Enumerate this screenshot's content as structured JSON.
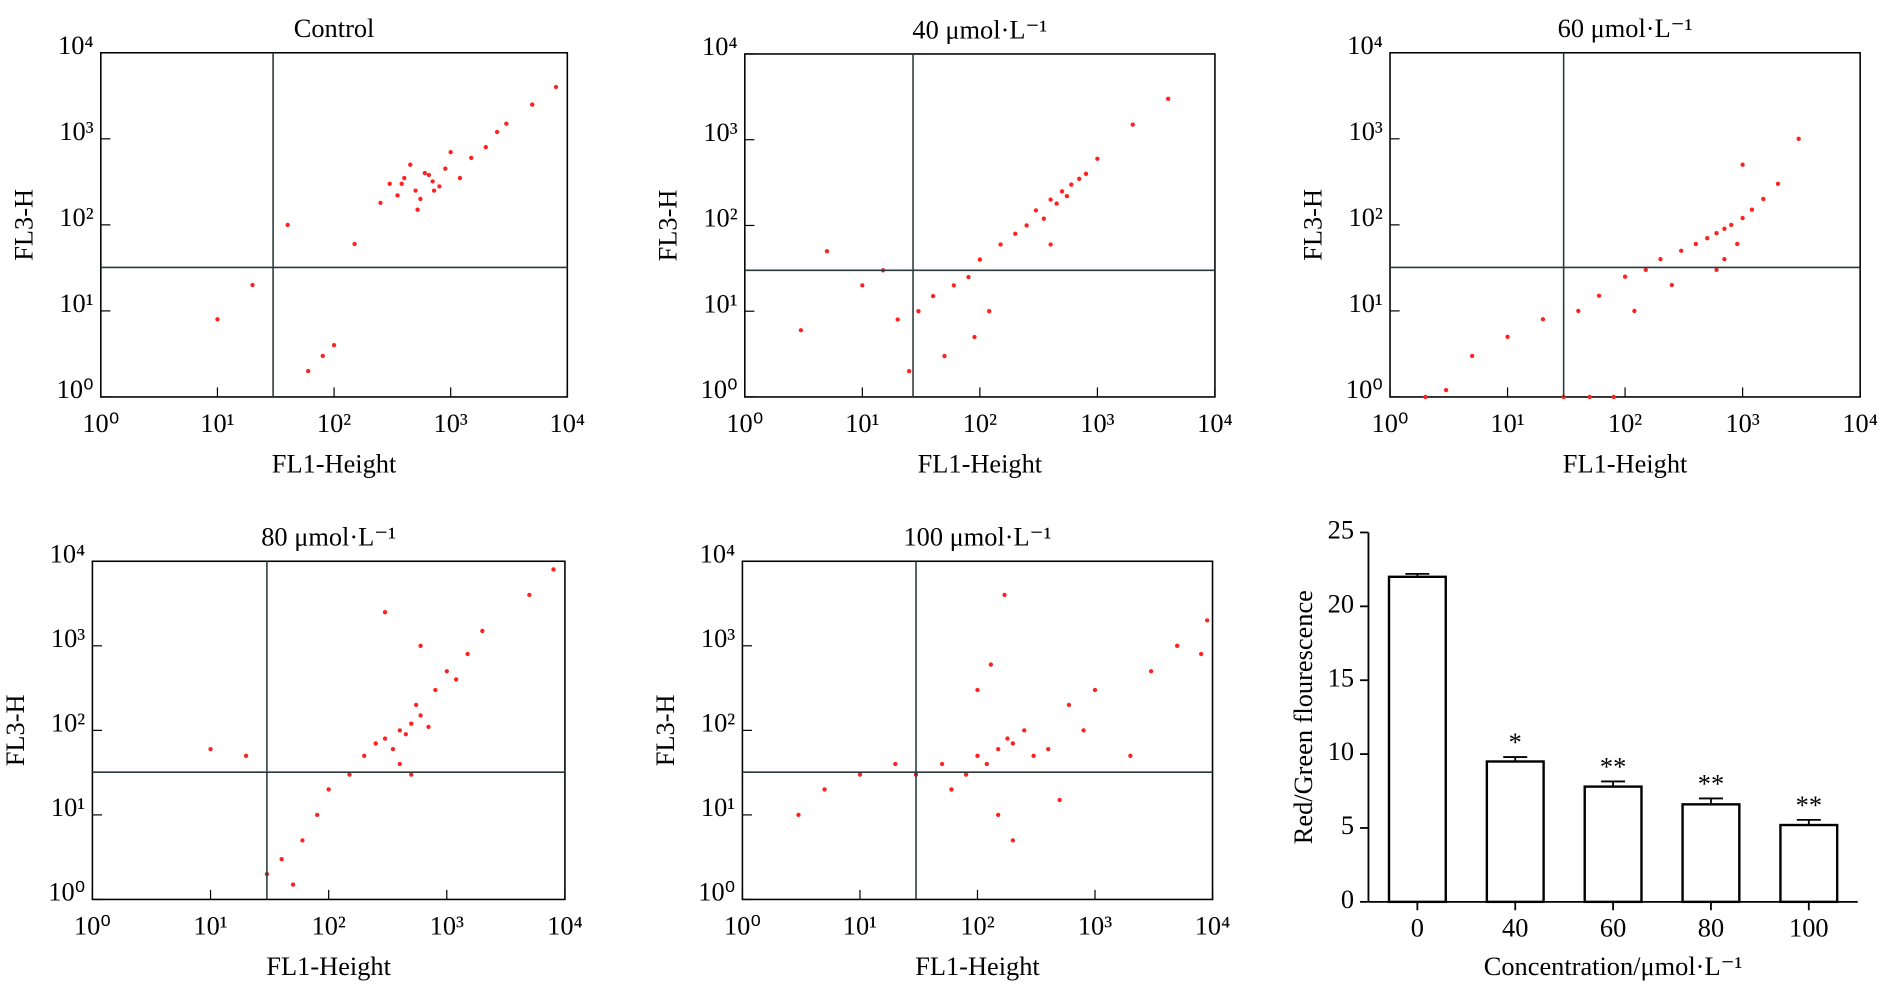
{
  "chart_data": [
    {
      "type": "scatter",
      "title": "Control",
      "xlabel": "FL1-Height",
      "ylabel": "FL3-H",
      "xscale": "log",
      "yscale": "log",
      "color": "#ff2020",
      "xlim": [
        1,
        10000
      ],
      "ylim": [
        1,
        10000
      ],
      "xticks": [
        {
          "value": 1,
          "label": "10⁰"
        },
        {
          "value": 10,
          "label": "10¹"
        },
        {
          "value": 100,
          "label": "10²"
        },
        {
          "value": 1000,
          "label": "10³"
        },
        {
          "value": 10000,
          "label": "10⁴"
        }
      ],
      "yticks": [
        {
          "value": 1,
          "label": "10⁰"
        },
        {
          "value": 10,
          "label": "10¹"
        },
        {
          "value": 100,
          "label": "10²"
        },
        {
          "value": 1000,
          "label": "10³"
        },
        {
          "value": 10000,
          "label": "10⁴"
        }
      ],
      "gate_x": 30,
      "gate_y": 32,
      "x": [
        300,
        400,
        500,
        600,
        700,
        800,
        450,
        550,
        350,
        650,
        900,
        1200,
        1500,
        2000,
        250,
        380,
        520,
        720,
        1000,
        2500,
        3000,
        5000,
        8000,
        60,
        80,
        100,
        20,
        10,
        40,
        150
      ],
      "y": [
        300,
        350,
        250,
        400,
        320,
        280,
        500,
        200,
        220,
        380,
        450,
        350,
        600,
        800,
        180,
        300,
        150,
        250,
        700,
        1200,
        1500,
        2500,
        4000,
        2,
        3,
        4,
        20,
        8,
        100,
        60
      ]
    },
    {
      "type": "scatter",
      "title": "40 μmol·L⁻¹",
      "xlabel": "FL1-Height",
      "ylabel": "FL3-H",
      "xscale": "log",
      "yscale": "log",
      "color": "#ff2020",
      "xlim": [
        1,
        10000
      ],
      "ylim": [
        1,
        10000
      ],
      "xticks": [
        {
          "value": 1,
          "label": "10⁰"
        },
        {
          "value": 10,
          "label": "10¹"
        },
        {
          "value": 100,
          "label": "10²"
        },
        {
          "value": 1000,
          "label": "10³"
        },
        {
          "value": 10000,
          "label": "10⁴"
        }
      ],
      "yticks": [
        {
          "value": 1,
          "label": "10⁰"
        },
        {
          "value": 10,
          "label": "10¹"
        },
        {
          "value": 100,
          "label": "10²"
        },
        {
          "value": 1000,
          "label": "10³"
        },
        {
          "value": 10000,
          "label": "10⁴"
        }
      ],
      "gate_x": 27,
      "gate_y": 30,
      "x": [
        300,
        400,
        500,
        600,
        450,
        350,
        700,
        550,
        250,
        800,
        200,
        150,
        100,
        80,
        60,
        40,
        30,
        20,
        15,
        10,
        5,
        3,
        1000,
        2000,
        4000,
        120,
        90,
        50,
        25,
        400
      ],
      "y": [
        150,
        200,
        250,
        300,
        180,
        120,
        350,
        220,
        100,
        400,
        80,
        60,
        40,
        25,
        20,
        15,
        10,
        8,
        30,
        20,
        50,
        6,
        600,
        1500,
        3000,
        10,
        5,
        3,
        2,
        60
      ]
    },
    {
      "type": "scatter",
      "title": "60 μmol·L⁻¹",
      "xlabel": "FL1-Height",
      "ylabel": "FL3-H",
      "xscale": "log",
      "yscale": "log",
      "color": "#ff2020",
      "xlim": [
        1,
        10000
      ],
      "ylim": [
        1,
        10000
      ],
      "xticks": [
        {
          "value": 1,
          "label": "10⁰"
        },
        {
          "value": 10,
          "label": "10¹"
        },
        {
          "value": 100,
          "label": "10²"
        },
        {
          "value": 1000,
          "label": "10³"
        },
        {
          "value": 10000,
          "label": "10⁴"
        }
      ],
      "yticks": [
        {
          "value": 1,
          "label": "10⁰"
        },
        {
          "value": 10,
          "label": "10¹"
        },
        {
          "value": 100,
          "label": "10²"
        },
        {
          "value": 1000,
          "label": "10³"
        },
        {
          "value": 10000,
          "label": "10⁴"
        }
      ],
      "gate_x": 30,
      "gate_y": 32,
      "x": [
        400,
        600,
        800,
        1000,
        500,
        700,
        1200,
        300,
        900,
        1500,
        2000,
        3000,
        200,
        150,
        100,
        60,
        40,
        20,
        10,
        5,
        3,
        2,
        50,
        30,
        80,
        700,
        600,
        1000,
        250,
        120
      ],
      "y": [
        60,
        80,
        100,
        120,
        70,
        90,
        150,
        50,
        60,
        200,
        300,
        1000,
        40,
        30,
        25,
        15,
        10,
        8,
        5,
        3,
        1.2,
        1,
        1,
        1,
        1,
        40,
        30,
        500,
        20,
        10
      ]
    },
    {
      "type": "scatter",
      "title": "80 μmol·L⁻¹",
      "xlabel": "FL1-Height",
      "ylabel": "FL3-H",
      "xscale": "log",
      "yscale": "log",
      "color": "#ff2020",
      "xlim": [
        1,
        10000
      ],
      "ylim": [
        1,
        10000
      ],
      "xticks": [
        {
          "value": 1,
          "label": "10⁰"
        },
        {
          "value": 10,
          "label": "10¹"
        },
        {
          "value": 100,
          "label": "10²"
        },
        {
          "value": 1000,
          "label": "10³"
        },
        {
          "value": 10000,
          "label": "10⁴"
        }
      ],
      "yticks": [
        {
          "value": 1,
          "label": "10⁰"
        },
        {
          "value": 10,
          "label": "10¹"
        },
        {
          "value": 100,
          "label": "10²"
        },
        {
          "value": 1000,
          "label": "10³"
        },
        {
          "value": 10000,
          "label": "10⁴"
        }
      ],
      "gate_x": 30,
      "gate_y": 32,
      "x": [
        300,
        400,
        500,
        600,
        350,
        450,
        550,
        700,
        250,
        800,
        1000,
        1500,
        2000,
        5000,
        8000,
        200,
        150,
        100,
        80,
        60,
        40,
        30,
        20,
        400,
        500,
        600,
        300,
        1200,
        10,
        50
      ],
      "y": [
        80,
        100,
        120,
        150,
        60,
        90,
        200,
        110,
        70,
        300,
        500,
        800,
        1500,
        4000,
        8000,
        50,
        30,
        20,
        10,
        5,
        3,
        2,
        50,
        40,
        30,
        1000,
        2500,
        400,
        60,
        1.5
      ]
    },
    {
      "type": "scatter",
      "title": "100 μmol·L⁻¹",
      "xlabel": "FL1-Height",
      "ylabel": "FL3-H",
      "xscale": "log",
      "yscale": "log",
      "color": "#ff2020",
      "xlim": [
        1,
        10000
      ],
      "ylim": [
        1,
        10000
      ],
      "xticks": [
        {
          "value": 1,
          "label": "10⁰"
        },
        {
          "value": 10,
          "label": "10¹"
        },
        {
          "value": 100,
          "label": "10²"
        },
        {
          "value": 1000,
          "label": "10³"
        },
        {
          "value": 10000,
          "label": "10⁴"
        }
      ],
      "yticks": [
        {
          "value": 1,
          "label": "10⁰"
        },
        {
          "value": 10,
          "label": "10¹"
        },
        {
          "value": 100,
          "label": "10²"
        },
        {
          "value": 1000,
          "label": "10³"
        },
        {
          "value": 10000,
          "label": "10⁴"
        }
      ],
      "gate_x": 30,
      "gate_y": 32,
      "x": [
        100,
        150,
        200,
        120,
        180,
        250,
        80,
        300,
        60,
        400,
        50,
        30,
        20,
        10,
        5,
        3,
        600,
        800,
        1000,
        2000,
        3000,
        5000,
        8000,
        9000,
        150,
        200,
        100,
        130,
        170,
        500
      ],
      "y": [
        50,
        60,
        70,
        40,
        80,
        100,
        30,
        50,
        20,
        60,
        40,
        30,
        40,
        30,
        20,
        10,
        200,
        100,
        300,
        50,
        500,
        1000,
        800,
        2000,
        10,
        5,
        300,
        600,
        4000,
        15
      ]
    },
    {
      "type": "bar",
      "xlabel": "Concentration/μmol·L⁻¹",
      "ylabel": "Red/Green flourescence",
      "color": "#ffffff",
      "categories": [
        "0",
        "40",
        "60",
        "80",
        "100"
      ],
      "values": [
        22,
        9.5,
        7.8,
        6.6,
        5.2
      ],
      "errors": [
        0.2,
        0.3,
        0.35,
        0.4,
        0.35
      ],
      "significance": [
        null,
        "*",
        "**",
        "**",
        "**"
      ],
      "ylim": [
        0,
        25
      ],
      "yticks": [
        0,
        5,
        10,
        15,
        20,
        25
      ]
    }
  ]
}
